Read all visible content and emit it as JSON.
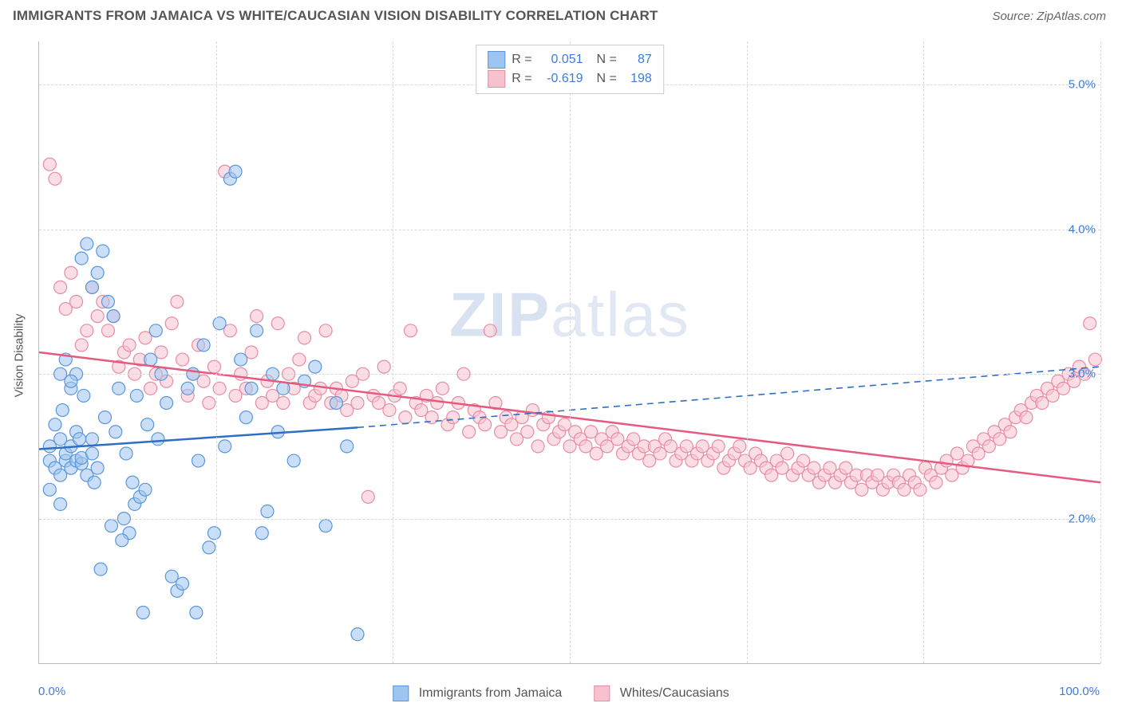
{
  "title": "IMMIGRANTS FROM JAMAICA VS WHITE/CAUCASIAN VISION DISABILITY CORRELATION CHART",
  "source": "Source: ZipAtlas.com",
  "y_axis_label": "Vision Disability",
  "watermark_bold": "ZIP",
  "watermark_light": "atlas",
  "chart": {
    "type": "scatter",
    "xlim": [
      0,
      100
    ],
    "ylim": [
      1.0,
      5.3
    ],
    "y_ticks": [
      2.0,
      3.0,
      4.0,
      5.0
    ],
    "y_tick_labels": [
      "2.0%",
      "3.0%",
      "4.0%",
      "5.0%"
    ],
    "x_ticks": [
      0,
      16.67,
      33.33,
      50,
      66.67,
      83.33,
      100
    ],
    "x_end_labels": [
      "0.0%",
      "100.0%"
    ],
    "background_color": "#ffffff",
    "grid_color": "#d8d8d8",
    "axis_color": "#bbbbbb",
    "tick_label_color": "#3b7dd8",
    "marker_radius": 8,
    "marker_opacity": 0.55,
    "marker_stroke_width": 1.2,
    "trend_line_width": 2.5,
    "trend_dash_width": 1.6
  },
  "series": {
    "blue": {
      "label": "Immigrants from Jamaica",
      "fill": "#9ec5f0",
      "stroke": "#5a96db",
      "line_color": "#2f6fc2",
      "R": "0.051",
      "N": "87",
      "trend": {
        "x1": 0,
        "y1": 2.48,
        "x2": 30,
        "y2": 2.63
      },
      "trend_dash": {
        "x1": 30,
        "y1": 2.63,
        "x2": 100,
        "y2": 3.05
      },
      "points": [
        [
          1,
          2.5
        ],
        [
          1,
          2.4
        ],
        [
          1.5,
          2.35
        ],
        [
          2,
          2.3
        ],
        [
          2,
          2.55
        ],
        [
          2.5,
          2.4
        ],
        [
          2.5,
          2.45
        ],
        [
          3,
          2.35
        ],
        [
          3,
          2.5
        ],
        [
          3.5,
          2.4
        ],
        [
          3.5,
          2.6
        ],
        [
          4,
          2.38
        ],
        [
          4,
          2.42
        ],
        [
          4.5,
          2.3
        ],
        [
          5,
          2.45
        ],
        [
          5,
          2.55
        ],
        [
          5.5,
          2.35
        ],
        [
          2,
          3.0
        ],
        [
          2.5,
          3.1
        ],
        [
          3,
          2.9
        ],
        [
          3.5,
          3.0
        ],
        [
          4,
          3.8
        ],
        [
          4.5,
          3.9
        ],
        [
          5,
          3.6
        ],
        [
          5.5,
          3.7
        ],
        [
          6,
          3.85
        ],
        [
          6.5,
          3.5
        ],
        [
          7,
          3.4
        ],
        [
          7.5,
          2.9
        ],
        [
          8,
          2.0
        ],
        [
          8.5,
          1.9
        ],
        [
          9,
          2.1
        ],
        [
          9.5,
          2.15
        ],
        [
          10,
          2.2
        ],
        [
          10.5,
          3.1
        ],
        [
          11,
          3.3
        ],
        [
          11.5,
          3.0
        ],
        [
          12,
          2.8
        ],
        [
          12.5,
          1.6
        ],
        [
          13,
          1.5
        ],
        [
          13.5,
          1.55
        ],
        [
          14,
          2.9
        ],
        [
          14.5,
          3.0
        ],
        [
          15,
          2.4
        ],
        [
          15.5,
          3.2
        ],
        [
          16,
          1.8
        ],
        [
          16.5,
          1.9
        ],
        [
          17,
          3.35
        ],
        [
          17.5,
          2.5
        ],
        [
          18,
          4.35
        ],
        [
          18.5,
          4.4
        ],
        [
          19,
          3.1
        ],
        [
          19.5,
          2.7
        ],
        [
          20,
          2.9
        ],
        [
          20.5,
          3.3
        ],
        [
          21,
          1.9
        ],
        [
          21.5,
          2.05
        ],
        [
          22,
          3.0
        ],
        [
          22.5,
          2.6
        ],
        [
          23,
          2.9
        ],
        [
          24,
          2.4
        ],
        [
          25,
          2.95
        ],
        [
          26,
          3.05
        ],
        [
          27,
          1.95
        ],
        [
          28,
          2.8
        ],
        [
          29,
          2.5
        ],
        [
          30,
          1.2
        ],
        [
          1,
          2.2
        ],
        [
          2,
          2.1
        ],
        [
          3,
          2.95
        ],
        [
          1.5,
          2.65
        ],
        [
          2.2,
          2.75
        ],
        [
          3.8,
          2.55
        ],
        [
          4.2,
          2.85
        ],
        [
          5.2,
          2.25
        ],
        [
          6.2,
          2.7
        ],
        [
          7.2,
          2.6
        ],
        [
          8.2,
          2.45
        ],
        [
          9.2,
          2.85
        ],
        [
          10.2,
          2.65
        ],
        [
          11.2,
          2.55
        ],
        [
          6.8,
          1.95
        ],
        [
          7.8,
          1.85
        ],
        [
          14.8,
          1.35
        ],
        [
          9.8,
          1.35
        ],
        [
          5.8,
          1.65
        ],
        [
          8.8,
          2.25
        ]
      ]
    },
    "pink": {
      "label": "Whites/Caucasians",
      "fill": "#f7c2cf",
      "stroke": "#e88ca3",
      "line_color": "#e55a7f",
      "R": "-0.619",
      "N": "198",
      "trend": {
        "x1": 0,
        "y1": 3.15,
        "x2": 100,
        "y2": 2.25
      },
      "points": [
        [
          1,
          4.45
        ],
        [
          1.5,
          4.35
        ],
        [
          2,
          3.6
        ],
        [
          2.5,
          3.45
        ],
        [
          3,
          3.7
        ],
        [
          3.5,
          3.5
        ],
        [
          4,
          3.2
        ],
        [
          4.5,
          3.3
        ],
        [
          5,
          3.6
        ],
        [
          5.5,
          3.4
        ],
        [
          6,
          3.5
        ],
        [
          6.5,
          3.3
        ],
        [
          7,
          3.4
        ],
        [
          7.5,
          3.05
        ],
        [
          8,
          3.15
        ],
        [
          8.5,
          3.2
        ],
        [
          9,
          3.0
        ],
        [
          9.5,
          3.1
        ],
        [
          10,
          3.25
        ],
        [
          10.5,
          2.9
        ],
        [
          11,
          3.0
        ],
        [
          11.5,
          3.15
        ],
        [
          12,
          2.95
        ],
        [
          12.5,
          3.35
        ],
        [
          13,
          3.5
        ],
        [
          13.5,
          3.1
        ],
        [
          14,
          2.85
        ],
        [
          14.5,
          3.0
        ],
        [
          15,
          3.2
        ],
        [
          15.5,
          2.95
        ],
        [
          16,
          2.8
        ],
        [
          16.5,
          3.05
        ],
        [
          17,
          2.9
        ],
        [
          17.5,
          4.4
        ],
        [
          18,
          3.3
        ],
        [
          18.5,
          2.85
        ],
        [
          19,
          3.0
        ],
        [
          19.5,
          2.9
        ],
        [
          20,
          3.15
        ],
        [
          20.5,
          3.4
        ],
        [
          21,
          2.8
        ],
        [
          21.5,
          2.95
        ],
        [
          22,
          2.85
        ],
        [
          22.5,
          3.35
        ],
        [
          23,
          2.8
        ],
        [
          23.5,
          3.0
        ],
        [
          24,
          2.9
        ],
        [
          24.5,
          3.1
        ],
        [
          25,
          3.25
        ],
        [
          25.5,
          2.8
        ],
        [
          26,
          2.85
        ],
        [
          26.5,
          2.9
        ],
        [
          27,
          3.3
        ],
        [
          27.5,
          2.8
        ],
        [
          28,
          2.9
        ],
        [
          28.5,
          2.85
        ],
        [
          29,
          2.75
        ],
        [
          29.5,
          2.95
        ],
        [
          30,
          2.8
        ],
        [
          30.5,
          3.0
        ],
        [
          31,
          2.15
        ],
        [
          31.5,
          2.85
        ],
        [
          32,
          2.8
        ],
        [
          32.5,
          3.05
        ],
        [
          33,
          2.75
        ],
        [
          33.5,
          2.85
        ],
        [
          34,
          2.9
        ],
        [
          34.5,
          2.7
        ],
        [
          35,
          3.3
        ],
        [
          35.5,
          2.8
        ],
        [
          36,
          2.75
        ],
        [
          36.5,
          2.85
        ],
        [
          37,
          2.7
        ],
        [
          37.5,
          2.8
        ],
        [
          38,
          2.9
        ],
        [
          38.5,
          2.65
        ],
        [
          39,
          2.7
        ],
        [
          39.5,
          2.8
        ],
        [
          40,
          3.0
        ],
        [
          40.5,
          2.6
        ],
        [
          41,
          2.75
        ],
        [
          41.5,
          2.7
        ],
        [
          42,
          2.65
        ],
        [
          42.5,
          3.3
        ],
        [
          43,
          2.8
        ],
        [
          43.5,
          2.6
        ],
        [
          44,
          2.7
        ],
        [
          44.5,
          2.65
        ],
        [
          45,
          2.55
        ],
        [
          45.5,
          2.7
        ],
        [
          46,
          2.6
        ],
        [
          46.5,
          2.75
        ],
        [
          47,
          2.5
        ],
        [
          47.5,
          2.65
        ],
        [
          48,
          2.7
        ],
        [
          48.5,
          2.55
        ],
        [
          49,
          2.6
        ],
        [
          49.5,
          2.65
        ],
        [
          50,
          2.5
        ],
        [
          50.5,
          2.6
        ],
        [
          51,
          2.55
        ],
        [
          51.5,
          2.5
        ],
        [
          52,
          2.6
        ],
        [
          52.5,
          2.45
        ],
        [
          53,
          2.55
        ],
        [
          53.5,
          2.5
        ],
        [
          54,
          2.6
        ],
        [
          54.5,
          2.55
        ],
        [
          55,
          2.45
        ],
        [
          55.5,
          2.5
        ],
        [
          56,
          2.55
        ],
        [
          56.5,
          2.45
        ],
        [
          57,
          2.5
        ],
        [
          57.5,
          2.4
        ],
        [
          58,
          2.5
        ],
        [
          58.5,
          2.45
        ],
        [
          59,
          2.55
        ],
        [
          59.5,
          2.5
        ],
        [
          60,
          2.4
        ],
        [
          60.5,
          2.45
        ],
        [
          61,
          2.5
        ],
        [
          61.5,
          2.4
        ],
        [
          62,
          2.45
        ],
        [
          62.5,
          2.5
        ],
        [
          63,
          2.4
        ],
        [
          63.5,
          2.45
        ],
        [
          64,
          2.5
        ],
        [
          64.5,
          2.35
        ],
        [
          65,
          2.4
        ],
        [
          65.5,
          2.45
        ],
        [
          66,
          2.5
        ],
        [
          66.5,
          2.4
        ],
        [
          67,
          2.35
        ],
        [
          67.5,
          2.45
        ],
        [
          68,
          2.4
        ],
        [
          68.5,
          2.35
        ],
        [
          69,
          2.3
        ],
        [
          69.5,
          2.4
        ],
        [
          70,
          2.35
        ],
        [
          70.5,
          2.45
        ],
        [
          71,
          2.3
        ],
        [
          71.5,
          2.35
        ],
        [
          72,
          2.4
        ],
        [
          72.5,
          2.3
        ],
        [
          73,
          2.35
        ],
        [
          73.5,
          2.25
        ],
        [
          74,
          2.3
        ],
        [
          74.5,
          2.35
        ],
        [
          75,
          2.25
        ],
        [
          75.5,
          2.3
        ],
        [
          76,
          2.35
        ],
        [
          76.5,
          2.25
        ],
        [
          77,
          2.3
        ],
        [
          77.5,
          2.2
        ],
        [
          78,
          2.3
        ],
        [
          78.5,
          2.25
        ],
        [
          79,
          2.3
        ],
        [
          79.5,
          2.2
        ],
        [
          80,
          2.25
        ],
        [
          80.5,
          2.3
        ],
        [
          81,
          2.25
        ],
        [
          81.5,
          2.2
        ],
        [
          82,
          2.3
        ],
        [
          82.5,
          2.25
        ],
        [
          83,
          2.2
        ],
        [
          83.5,
          2.35
        ],
        [
          84,
          2.3
        ],
        [
          84.5,
          2.25
        ],
        [
          85,
          2.35
        ],
        [
          85.5,
          2.4
        ],
        [
          86,
          2.3
        ],
        [
          86.5,
          2.45
        ],
        [
          87,
          2.35
        ],
        [
          87.5,
          2.4
        ],
        [
          88,
          2.5
        ],
        [
          88.5,
          2.45
        ],
        [
          89,
          2.55
        ],
        [
          89.5,
          2.5
        ],
        [
          90,
          2.6
        ],
        [
          90.5,
          2.55
        ],
        [
          91,
          2.65
        ],
        [
          91.5,
          2.6
        ],
        [
          92,
          2.7
        ],
        [
          92.5,
          2.75
        ],
        [
          93,
          2.7
        ],
        [
          93.5,
          2.8
        ],
        [
          94,
          2.85
        ],
        [
          94.5,
          2.8
        ],
        [
          95,
          2.9
        ],
        [
          95.5,
          2.85
        ],
        [
          96,
          2.95
        ],
        [
          96.5,
          2.9
        ],
        [
          97,
          3.0
        ],
        [
          97.5,
          2.95
        ],
        [
          98,
          3.05
        ],
        [
          98.5,
          3.0
        ],
        [
          99,
          3.35
        ],
        [
          99.5,
          3.1
        ]
      ]
    }
  }
}
